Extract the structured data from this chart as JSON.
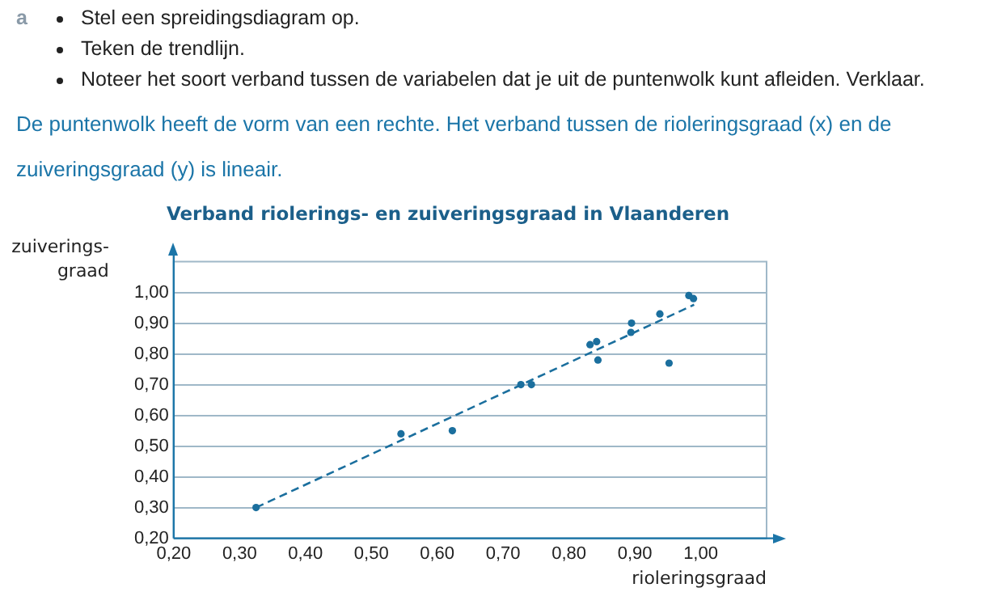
{
  "chart_data": {
    "type": "scatter",
    "title": "Verband riolerings- en zuiveringsgraad in Vlaanderen",
    "xlabel": "rioleringsgraad",
    "ylabel": "zuiverings-\ngraad",
    "annotations": [
      "a",
      "Stel een spreidingsdiagram op.",
      "Teken de trendlijn.",
      "Noteer het soort verband tussen de variabelen dat je uit de puntenwolk kunt afleiden. Verklaar.",
      "De puntenwolk heeft de vorm van een rechte. Het verband tussen de rioleringsgraad (x) en de zuiveringsgraad (y) is lineair."
    ],
    "series": [
      {
        "color": "#1b6f9e",
        "marker": "circle",
        "x": [
          0.325,
          0.545,
          0.623,
          0.727,
          0.743,
          0.832,
          0.842,
          0.844,
          0.894,
          0.895,
          0.938,
          0.952,
          0.982,
          0.989
        ],
        "values": [
          0.3,
          0.54,
          0.55,
          0.7,
          0.7,
          0.83,
          0.84,
          0.78,
          0.87,
          0.9,
          0.93,
          0.77,
          0.99,
          0.98
        ]
      },
      {
        "type": "line",
        "color": "#1b6f9e",
        "marker": "none",
        "line_style": "dashed",
        "x": [
          0.325,
          0.99
        ],
        "values": [
          0.3,
          0.96
        ]
      }
    ],
    "xlim": [
      0.2,
      1.1
    ],
    "ylim": [
      0.2,
      1.1
    ],
    "xticks": [
      {
        "value": 0.2,
        "label": "0,20"
      },
      {
        "value": 0.3,
        "label": "0,30"
      },
      {
        "value": 0.4,
        "label": "0,40"
      },
      {
        "value": 0.5,
        "label": "0,50"
      },
      {
        "value": 0.6,
        "label": "0,60"
      },
      {
        "value": 0.7,
        "label": "0,70"
      },
      {
        "value": 0.8,
        "label": "0,80"
      },
      {
        "value": 0.9,
        "label": "0,90"
      },
      {
        "value": 1.0,
        "label": "1,00"
      }
    ],
    "yticks": [
      {
        "value": 0.2,
        "label": "0,20"
      },
      {
        "value": 0.3,
        "label": "0,30"
      },
      {
        "value": 0.4,
        "label": "0,40"
      },
      {
        "value": 0.5,
        "label": "0,50"
      },
      {
        "value": 0.6,
        "label": "0,60"
      },
      {
        "value": 0.7,
        "label": "0,70"
      },
      {
        "value": 0.8,
        "label": "0,80"
      },
      {
        "value": 0.9,
        "label": "0,90"
      },
      {
        "value": 1.0,
        "label": "1,00"
      }
    ],
    "grid": "y",
    "legend": false
  }
}
